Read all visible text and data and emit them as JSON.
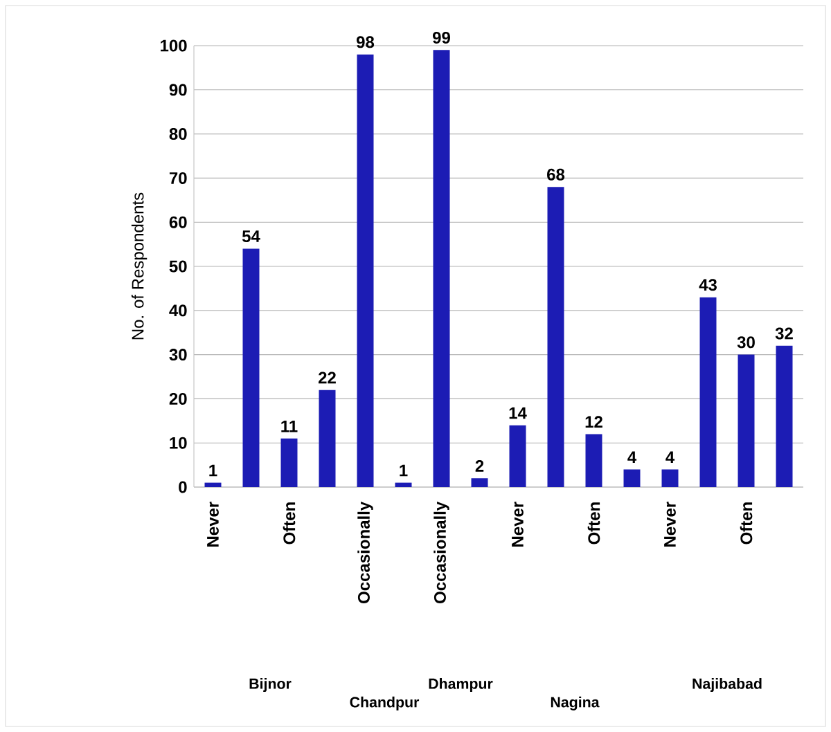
{
  "chart_data": {
    "type": "bar",
    "ylabel": "No. of Respondents",
    "categories": [
      "Never",
      null,
      "Often",
      null,
      "Occasionally",
      null,
      "Occasionally",
      null,
      "Never",
      null,
      "Often",
      null,
      "Never",
      null,
      "Often",
      null
    ],
    "values": [
      1,
      54,
      11,
      22,
      98,
      1,
      99,
      2,
      14,
      68,
      12,
      4,
      4,
      43,
      30,
      32
    ],
    "color": "#1c1cb4",
    "ylim": [
      0,
      100
    ],
    "yticks": [
      0,
      10,
      20,
      30,
      40,
      50,
      60,
      70,
      80,
      90,
      100
    ],
    "grid": "y",
    "data_labels": true,
    "annotations": [
      "Bijnor",
      "Chandpur",
      "Dhampur",
      "Nagina",
      "Najibabad"
    ]
  }
}
